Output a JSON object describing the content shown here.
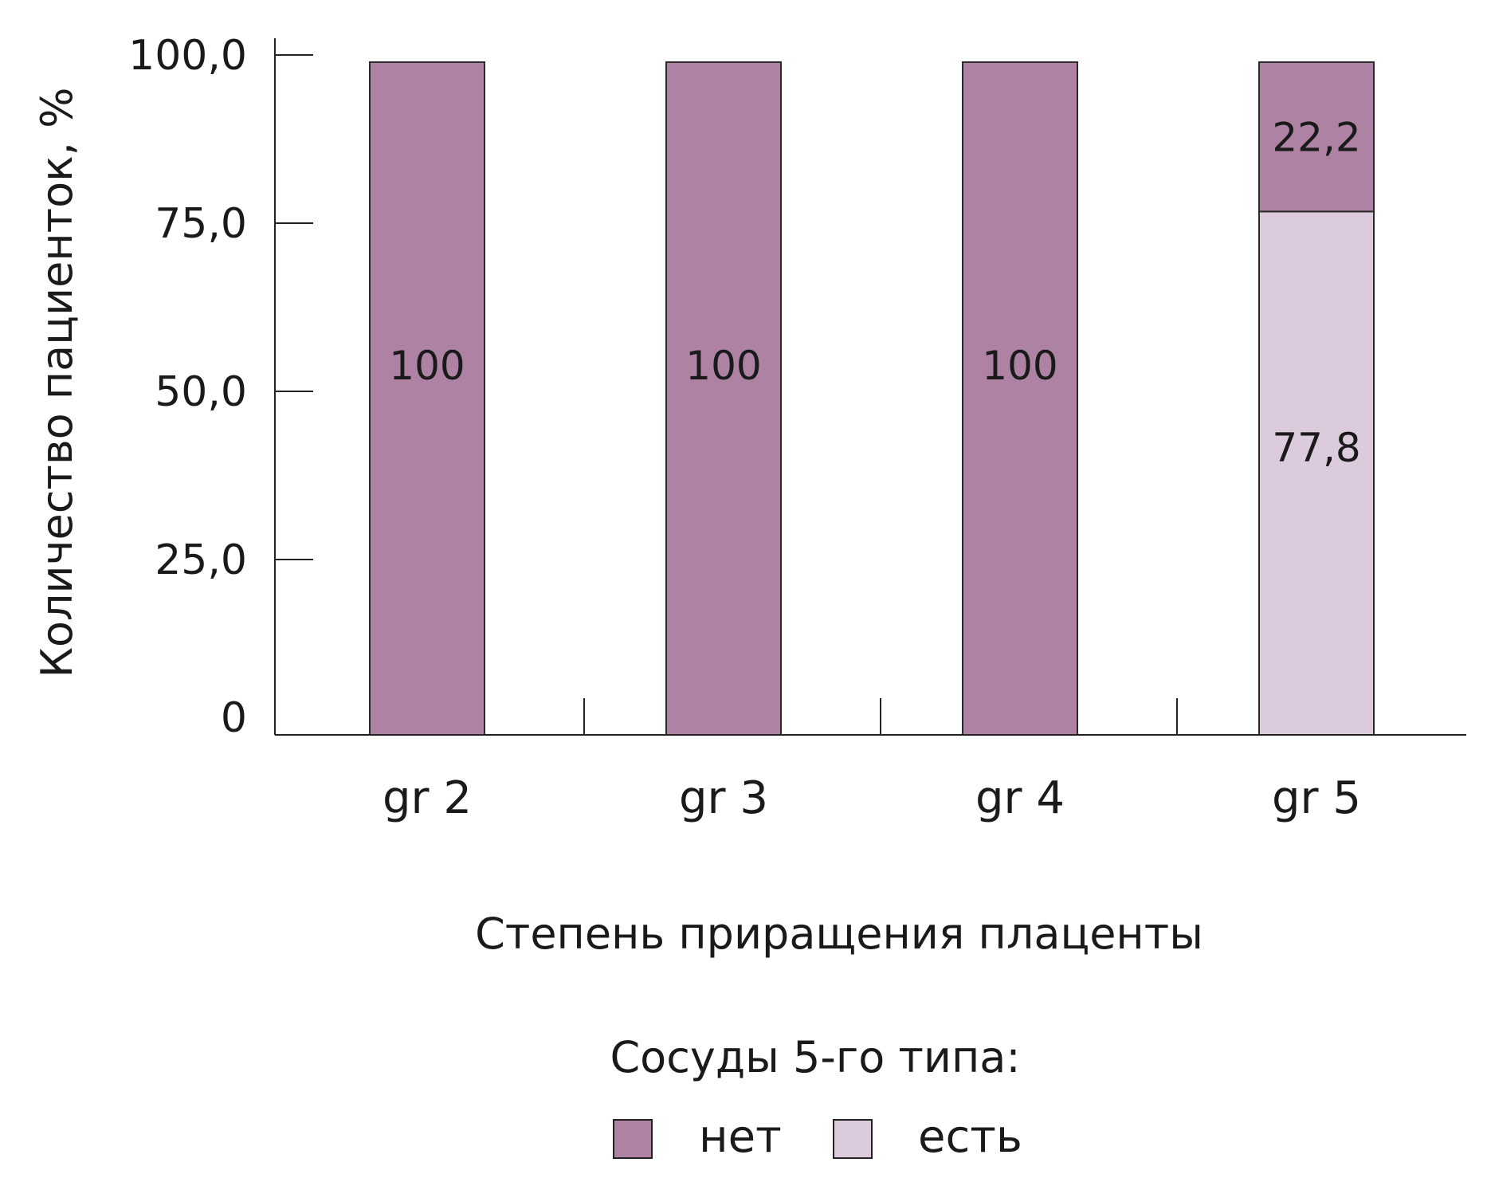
{
  "chart_data": {
    "type": "bar",
    "stacked": true,
    "categories": [
      "gr 2",
      "gr 3",
      "gr 4",
      "gr 5"
    ],
    "series": [
      {
        "name": "есть",
        "values": [
          0,
          0,
          0,
          77.8
        ],
        "labels": [
          "",
          "",
          "",
          "77,8"
        ],
        "color": "#dccbdc"
      },
      {
        "name": "нет",
        "values": [
          100,
          100,
          100,
          22.2
        ],
        "labels": [
          "100",
          "100",
          "100",
          "22,2"
        ],
        "color": "#ae82a3"
      }
    ],
    "xlabel": "Степень приращения плаценты",
    "ylabel": "Количество пациенток, %",
    "ylim": [
      0,
      100
    ],
    "yticks": [
      0,
      25,
      50,
      75,
      100
    ],
    "ytick_labels": [
      "0",
      "25,0",
      "50,0",
      "75,0",
      "100,0"
    ],
    "grid": false,
    "legend": {
      "title": "Сосуды 5-го типа:",
      "placement": "bottom-center",
      "entries": [
        {
          "label": "нет",
          "color": "#ae82a3"
        },
        {
          "label": "есть",
          "color": "#dccbdc"
        }
      ]
    }
  }
}
